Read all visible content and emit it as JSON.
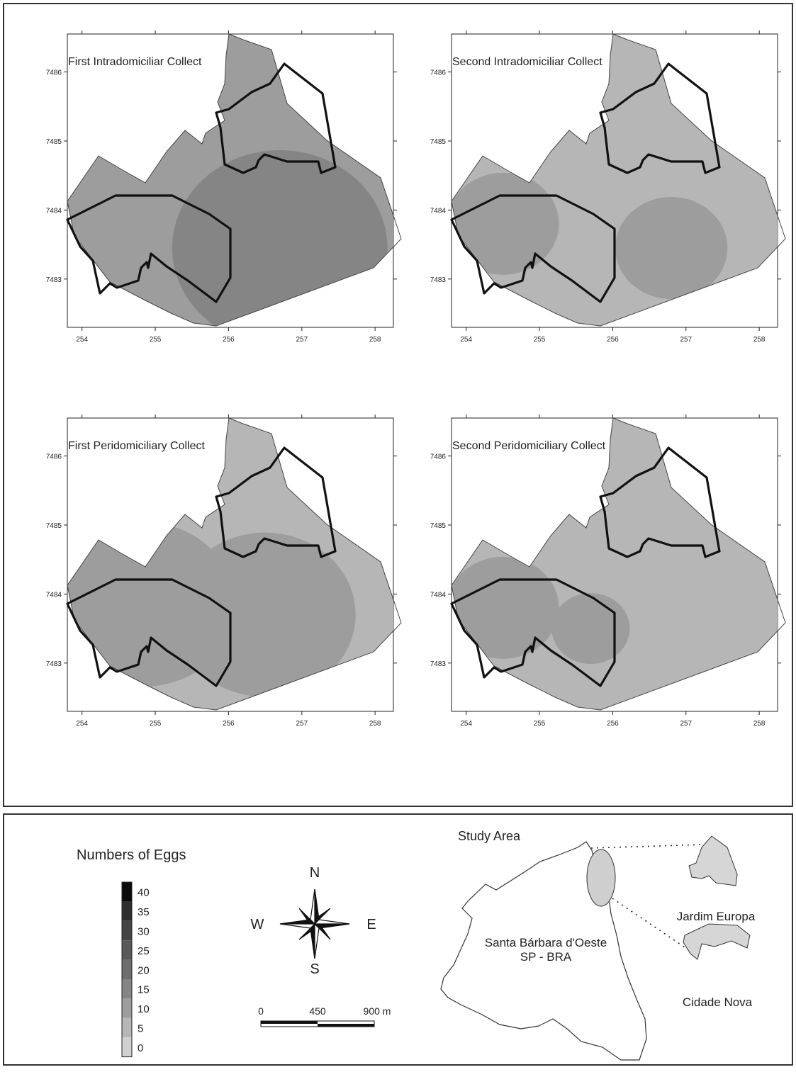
{
  "maps": [
    {
      "title": "First Intradomiciliar Collect",
      "hot": [
        [
          256.7,
          7483.45,
          40
        ]
      ],
      "base": 10
    },
    {
      "title": "Second Intradomiciliar Collect",
      "hot": [
        [
          256.8,
          7483.45,
          20
        ],
        [
          254.5,
          7483.8,
          20
        ]
      ],
      "base": 5
    },
    {
      "title": "First Peridomiciliary Collect",
      "hot": [
        [
          256.5,
          7483.7,
          30
        ],
        [
          254.85,
          7483.85,
          30
        ]
      ],
      "base": 5
    },
    {
      "title": "Second Peridomiciliary Collect",
      "hot": [
        [
          255.7,
          7483.5,
          15
        ],
        [
          254.5,
          7483.8,
          20
        ]
      ],
      "base": 5
    }
  ],
  "axes": {
    "x_ticks": [
      "254",
      "255",
      "256",
      "257",
      "258"
    ],
    "y_ticks": [
      "7486",
      "7485",
      "7484",
      "7483"
    ],
    "x_range": [
      253.8,
      258.25
    ],
    "y_range": [
      7482.3,
      7486.55
    ]
  },
  "legend": {
    "title": "Numbers of Eggs",
    "levels": [
      "40",
      "35",
      "30",
      "25",
      "20",
      "15",
      "10",
      "5",
      "0"
    ],
    "colors": [
      "#0b0b0b",
      "#2e2e2e",
      "#444444",
      "#595959",
      "#6e6e6e",
      "#858585",
      "#9d9d9d",
      "#b6b6b6",
      "#d0d0d0"
    ]
  },
  "compass": {
    "n": "N",
    "s": "S",
    "e": "E",
    "w": "W"
  },
  "scale": {
    "labels": [
      "0",
      "450",
      "900 m"
    ]
  },
  "study_area": {
    "title": "Study Area",
    "city_line1": "Santa Bárbara d'Oeste",
    "city_line2": "SP - BRA",
    "inset1": "Jardim Europa",
    "inset2": "Cidade Nova"
  }
}
